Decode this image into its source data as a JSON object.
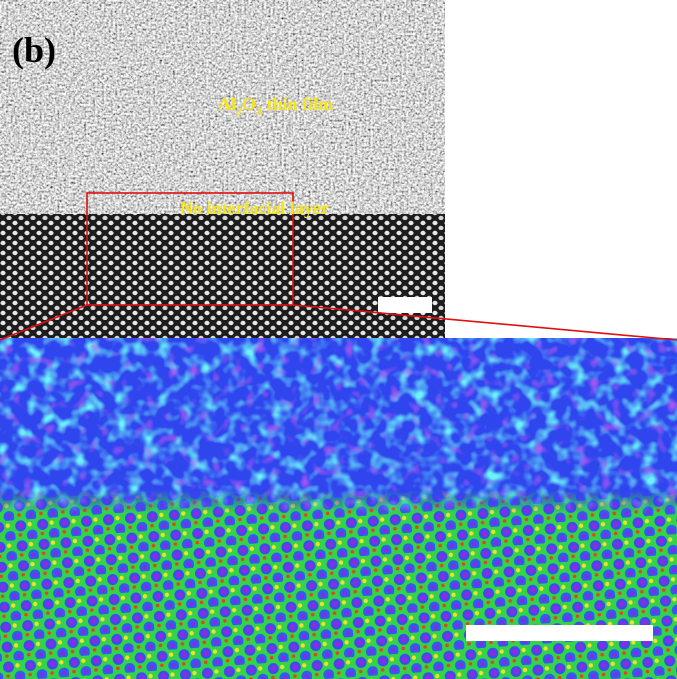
{
  "panel_label": "(b)",
  "film_label": {
    "parts": [
      "Al",
      "2",
      "O",
      "3",
      " thin film"
    ]
  },
  "interface_label": "No interfacial layer"
}
